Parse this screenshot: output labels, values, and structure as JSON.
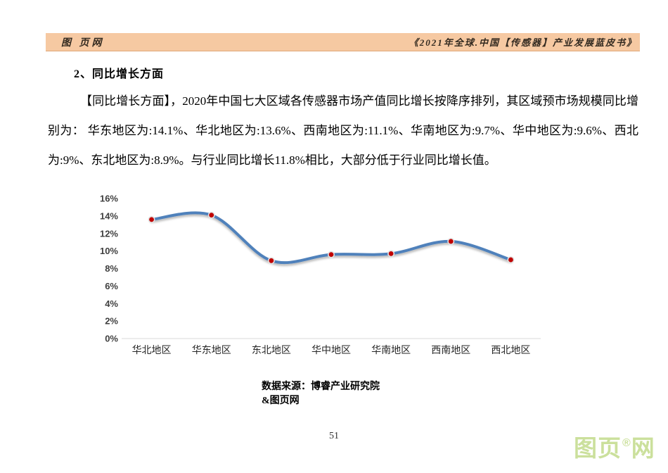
{
  "header": {
    "left_logo": "图 页网",
    "right_title": "《2021年全球.中国【传感器】产业发展蓝皮书》",
    "band_color": "#f6c9a2"
  },
  "section": {
    "heading": "2、同比增长方面"
  },
  "paragraph": {
    "lines": [
      "【同比增长方面】，2020年中国七大区域各传感器市场产值同比增长按降序排列，其区域预市场规模同比增长分",
      "别为： 华东地区为:14.1%、华北地区为:13.6%、西南地区为:11.1%、华南地区为:9.7%、华中地区为:9.6%、西北地区",
      "为:9%、东北地区为:8.9%。与行业同比增长11.8%相比，大部分低于行业同比增长值。"
    ]
  },
  "chart_data": {
    "type": "line",
    "categories": [
      "华北地区",
      "华东地区",
      "东北地区",
      "华中地区",
      "华南地区",
      "西南地区",
      "西北地区"
    ],
    "values": [
      13.6,
      14.1,
      8.9,
      9.6,
      9.7,
      11.1,
      9.0
    ],
    "unit": "%",
    "title": "",
    "xlabel": "",
    "ylabel": "",
    "ylim": [
      0,
      16
    ],
    "ytick_step": 2,
    "grid": false,
    "legend_position": "none",
    "line_color": "#4f81bb",
    "marker_color": "#c00000",
    "marker_ring_color": "#e2e2e2",
    "axis_line_color": "#d9d9d9",
    "smooth": true
  },
  "source_note": {
    "line1": "数据来源：博睿产业研究院",
    "line2": "&图页网"
  },
  "footer": {
    "page_number": "51"
  },
  "watermark": {
    "text_left": "图页",
    "reg_mark": "®",
    "text_right": "网",
    "color": "#cbe09c"
  }
}
